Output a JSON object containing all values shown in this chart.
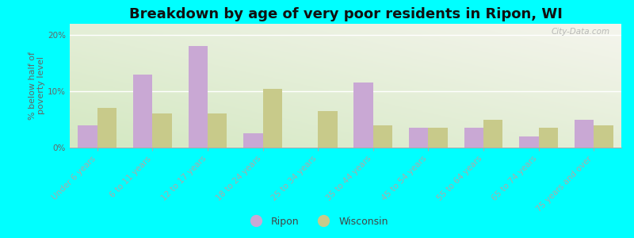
{
  "title": "Breakdown by age of very poor residents in Ripon, WI",
  "ylabel": "% below half of\npoverty level",
  "categories": [
    "Under 6 years",
    "6 to 11 years",
    "12 to 17 years",
    "18 to 24 years",
    "25 to 34 years",
    "35 to 44 years",
    "45 to 54 years",
    "55 to 64 years",
    "65 to 74 years",
    "75 years and over"
  ],
  "ripon": [
    4.0,
    13.0,
    18.0,
    2.5,
    0.0,
    11.5,
    3.5,
    3.5,
    2.0,
    5.0
  ],
  "wisconsin": [
    7.0,
    6.0,
    6.0,
    10.5,
    6.5,
    4.0,
    3.5,
    5.0,
    3.5,
    4.0
  ],
  "ripon_color": "#c9a8d4",
  "wisconsin_color": "#c8ca8a",
  "background_color": "#00ffff",
  "ylim": [
    0,
    22
  ],
  "yticks": [
    0,
    10,
    20
  ],
  "ytick_labels": [
    "0%",
    "10%",
    "20%"
  ],
  "bar_width": 0.35,
  "title_fontsize": 13,
  "axis_label_fontsize": 8,
  "tick_fontsize": 7.5,
  "legend_fontsize": 9,
  "watermark": "City-Data.com"
}
